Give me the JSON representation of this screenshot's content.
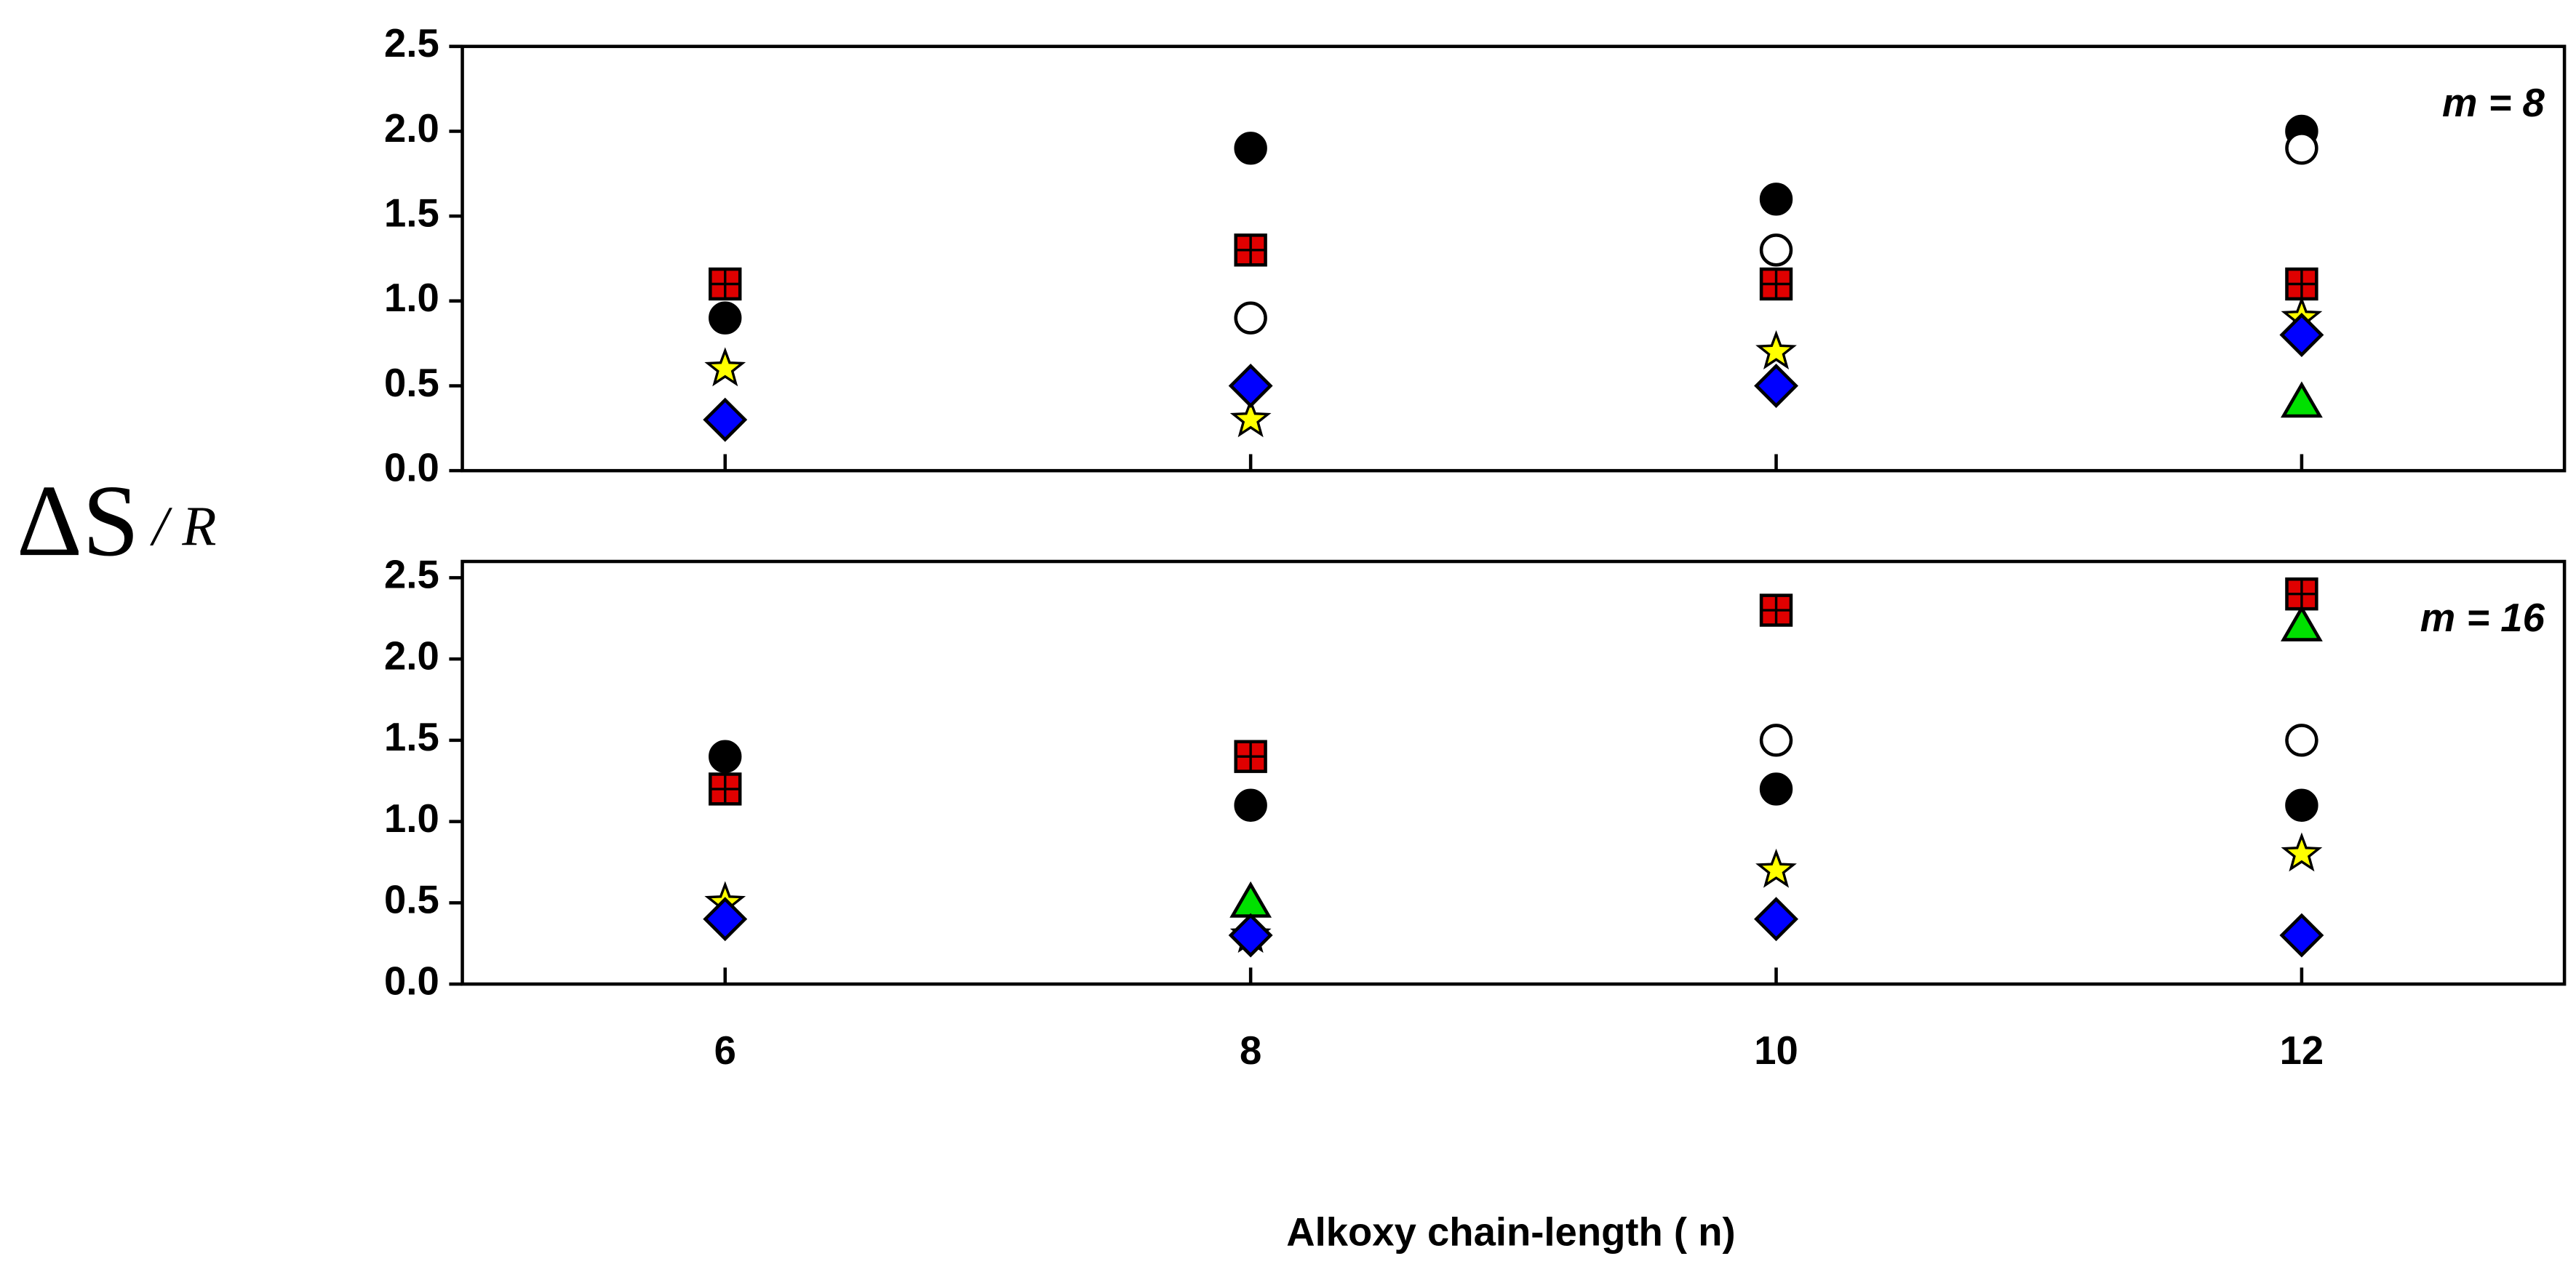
{
  "ylabel": [
    "ΔS",
    "/ R"
  ],
  "xlabel": "Alkoxy chain-length ( n)",
  "chart_data": [
    {
      "type": "scatter",
      "annotation": "m = 8",
      "x": [
        6,
        8,
        10,
        12
      ],
      "xlim": [
        5,
        13
      ],
      "xticks": [
        6,
        8,
        10,
        12
      ],
      "xtick_labels": false,
      "ylim": [
        0,
        2.5
      ],
      "yticks": [
        {
          "value": 0,
          "label": "0.0"
        },
        {
          "value": 0.5,
          "label": "0.5"
        },
        {
          "value": 1,
          "label": "1.0"
        },
        {
          "value": 1.5,
          "label": "1.5"
        },
        {
          "value": 2,
          "label": "2.0"
        },
        {
          "value": 2.5,
          "label": "2.5"
        }
      ],
      "series": [
        {
          "marker": "circle",
          "color": "#000000",
          "values": [
            0.9,
            1.9,
            1.6,
            2.0
          ]
        },
        {
          "marker": "circle",
          "color": "#ffffff",
          "values": [
            null,
            0.9,
            1.3,
            1.9
          ]
        },
        {
          "marker": "square",
          "color": "#e00000",
          "values": [
            1.1,
            1.3,
            1.1,
            1.1
          ]
        },
        {
          "marker": "triangle",
          "color": "#00e000",
          "values": [
            null,
            null,
            null,
            0.4
          ]
        },
        {
          "marker": "star",
          "color": "#ffff00",
          "values": [
            0.6,
            0.3,
            0.7,
            0.9
          ]
        },
        {
          "marker": "diamond",
          "color": "#0000ff",
          "values": [
            0.3,
            0.5,
            0.5,
            0.8
          ]
        }
      ]
    },
    {
      "type": "scatter",
      "annotation": "m = 16",
      "x": [
        6,
        8,
        10,
        12
      ],
      "xlim": [
        5,
        13
      ],
      "xticks": [
        6,
        8,
        10,
        12
      ],
      "xtick_labels": true,
      "ylim": [
        0,
        2.6
      ],
      "yticks": [
        {
          "value": 0,
          "label": "0.0"
        },
        {
          "value": 0.5,
          "label": "0.5"
        },
        {
          "value": 1,
          "label": "1.0"
        },
        {
          "value": 1.5,
          "label": "1.5"
        },
        {
          "value": 2,
          "label": "2.0"
        },
        {
          "value": 2.5,
          "label": "2.5"
        }
      ],
      "series": [
        {
          "marker": "circle",
          "color": "#000000",
          "values": [
            1.4,
            1.1,
            1.2,
            1.1
          ]
        },
        {
          "marker": "circle",
          "color": "#ffffff",
          "values": [
            null,
            null,
            1.5,
            1.5
          ]
        },
        {
          "marker": "square",
          "color": "#e00000",
          "values": [
            1.2,
            1.4,
            2.3,
            2.4
          ]
        },
        {
          "marker": "triangle",
          "color": "#00e000",
          "values": [
            null,
            0.5,
            null,
            2.2
          ]
        },
        {
          "marker": "star",
          "color": "#ffff00",
          "values": [
            0.5,
            0.3,
            0.7,
            0.8
          ]
        },
        {
          "marker": "diamond",
          "color": "#0000ff",
          "values": [
            0.4,
            0.3,
            0.4,
            0.3
          ]
        }
      ]
    }
  ]
}
